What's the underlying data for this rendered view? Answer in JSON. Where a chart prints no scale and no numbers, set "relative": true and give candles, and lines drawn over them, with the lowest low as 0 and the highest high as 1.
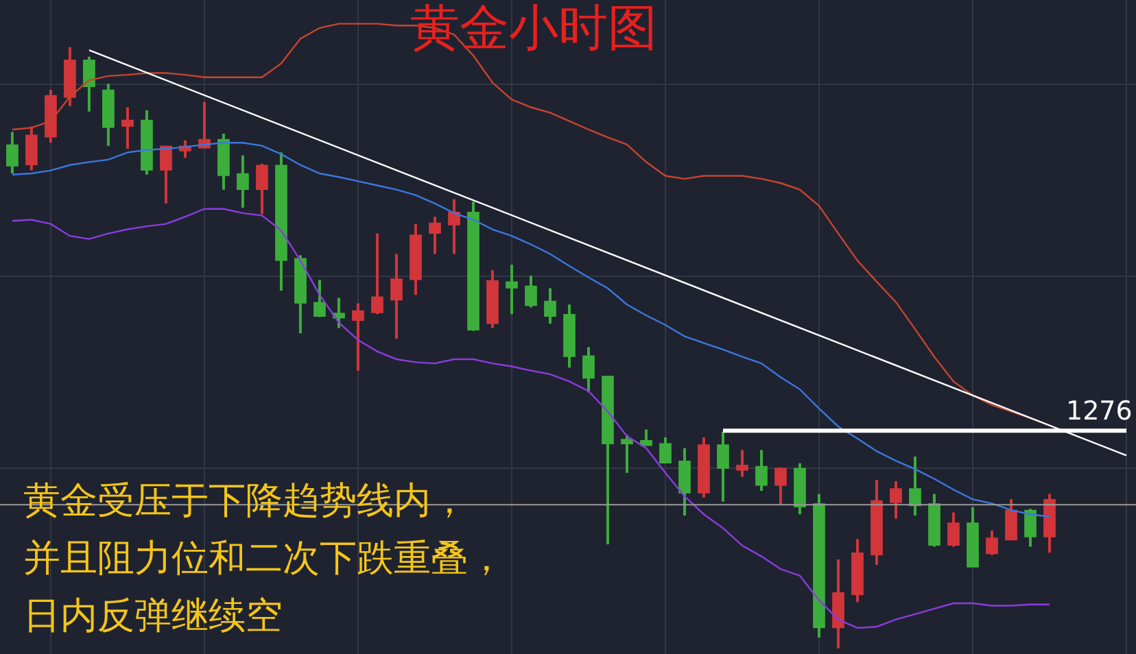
{
  "chart_data": {
    "type": "candlestick",
    "title": "黄金小时图",
    "relative": true,
    "legend": false,
    "grid": true,
    "marker": "none",
    "line_style": "solid",
    "annotations": [
      "黄金受压于下降趋势线内，",
      "并且阻力位和二次下跌重叠，",
      "日内反弹继续空"
    ],
    "categories": [
      null,
      null,
      null,
      null,
      null,
      null,
      null,
      null,
      null,
      null,
      null,
      null,
      null,
      null,
      null,
      null,
      null,
      null,
      null,
      null,
      null,
      null,
      null,
      null,
      null,
      null,
      null,
      null,
      null,
      null,
      null,
      null,
      null,
      null,
      null,
      null,
      null,
      null,
      null,
      null,
      null,
      null,
      null,
      null,
      null,
      null,
      null,
      null,
      null,
      null,
      null,
      null,
      null,
      null,
      null,
      null,
      null,
      null,
      null
    ],
    "ohlc": [
      [
        0.836,
        0.859,
        0.79,
        0.804
      ],
      [
        0.806,
        0.868,
        0.795,
        0.852
      ],
      [
        0.852,
        0.929,
        0.841,
        0.918
      ],
      [
        0.918,
        1.0,
        0.902,
        0.977
      ],
      [
        0.977,
        0.984,
        0.893,
        0.936
      ],
      [
        0.927,
        0.939,
        0.836,
        0.868
      ],
      [
        0.87,
        0.9,
        0.831,
        0.877
      ],
      [
        0.877,
        0.895,
        0.788,
        0.797
      ],
      [
        0.797,
        0.836,
        0.74,
        0.834
      ],
      [
        0.829,
        0.845,
        0.816,
        0.834
      ],
      [
        0.834,
        0.909,
        0.834,
        0.845
      ],
      [
        0.845,
        0.856,
        0.763,
        0.788
      ],
      [
        0.788,
        0.82,
        0.733,
        0.765
      ],
      [
        0.765,
        0.806,
        0.722,
        0.802
      ],
      [
        0.802,
        0.825,
        0.595,
        0.647
      ],
      [
        0.647,
        0.654,
        0.524,
        0.576
      ],
      [
        0.574,
        0.613,
        0.551,
        0.554
      ],
      [
        0.556,
        0.583,
        0.533,
        0.551
      ],
      [
        0.547,
        0.574,
        0.462,
        0.56
      ],
      [
        0.56,
        0.69,
        0.556,
        0.583
      ],
      [
        0.581,
        0.656,
        0.515,
        0.613
      ],
      [
        0.615,
        0.706,
        0.588,
        0.686
      ],
      [
        0.692,
        0.718,
        0.656,
        0.706
      ],
      [
        0.706,
        0.747,
        0.656,
        0.724
      ],
      [
        0.724,
        0.743,
        0.528,
        0.531
      ],
      [
        0.542,
        0.629,
        0.533,
        0.61
      ],
      [
        0.608,
        0.638,
        0.556,
        0.601
      ],
      [
        0.601,
        0.62,
        0.567,
        0.572
      ],
      [
        0.576,
        0.599,
        0.54,
        0.554
      ],
      [
        0.554,
        0.572,
        0.467,
        0.487
      ],
      [
        0.485,
        0.501,
        0.426,
        0.451
      ],
      [
        0.451,
        0.453,
        0.173,
        0.342
      ],
      [
        0.346,
        0.355,
        0.292,
        0.342
      ],
      [
        0.344,
        0.364,
        0.337,
        0.339
      ],
      [
        0.339,
        0.351,
        0.31,
        0.31
      ],
      [
        0.31,
        0.333,
        0.221,
        0.26
      ],
      [
        0.26,
        0.351,
        0.251,
        0.337
      ],
      [
        0.337,
        0.36,
        0.244,
        0.301
      ],
      [
        0.298,
        0.33,
        0.285,
        0.303
      ],
      [
        0.301,
        0.33,
        0.262,
        0.273
      ],
      [
        0.273,
        0.301,
        0.239,
        0.298
      ],
      [
        0.298,
        0.308,
        0.223,
        0.237
      ],
      [
        0.239,
        0.257,
        0.018,
        0.036
      ],
      [
        0.036,
        0.148,
        0.0,
        0.091
      ],
      [
        0.091,
        0.182,
        0.077,
        0.157
      ],
      [
        0.157,
        0.28,
        0.139,
        0.244
      ],
      [
        0.244,
        0.278,
        0.216,
        0.264
      ],
      [
        0.264,
        0.319,
        0.221,
        0.239
      ],
      [
        0.239,
        0.257,
        0.169,
        0.173
      ],
      [
        0.173,
        0.226,
        0.169,
        0.207
      ],
      [
        0.207,
        0.235,
        0.137,
        0.137
      ],
      [
        0.159,
        0.196,
        0.155,
        0.182
      ],
      [
        0.182,
        0.248,
        0.182,
        0.228
      ],
      [
        0.228,
        0.232,
        0.169,
        0.187
      ],
      [
        0.187,
        0.257,
        0.159,
        0.246
      ],
      null,
      null,
      null,
      null
    ],
    "colors": [
      "#3cae3c",
      "#d2363a",
      "#d2363a",
      "#d2363a",
      "#3cae3c",
      "#3cae3c",
      "#d2363a",
      "#3cae3c",
      "#d2363a",
      "#d2363a",
      "#d2363a",
      "#3cae3c",
      "#3cae3c",
      "#d2363a",
      "#3cae3c",
      "#3cae3c",
      "#3cae3c",
      "#3cae3c",
      "#d2363a",
      "#d2363a",
      "#d2363a",
      "#d2363a",
      "#d2363a",
      "#d2363a",
      "#3cae3c",
      "#d2363a",
      "#3cae3c",
      "#3cae3c",
      "#3cae3c",
      "#3cae3c",
      "#3cae3c",
      "#3cae3c",
      "#3cae3c",
      "#3cae3c",
      "#3cae3c",
      "#3cae3c",
      "#d2363a",
      "#3cae3c",
      "#d2363a",
      "#3cae3c",
      "#d2363a",
      "#3cae3c",
      "#3cae3c",
      "#d2363a",
      "#d2363a",
      "#d2363a",
      "#d2363a",
      "#3cae3c",
      "#3cae3c",
      "#d2363a",
      "#3cae3c",
      "#d2363a",
      "#d2363a",
      "#3cae3c",
      "#d2363a",
      null,
      null,
      null,
      null
    ],
    "series": [
      {
        "type": "line",
        "color": "#c8442f",
        "values": [
          0.863,
          0.866,
          0.877,
          0.918,
          0.945,
          0.952,
          0.954,
          0.957,
          0.957,
          0.954,
          0.95,
          0.95,
          0.95,
          0.95,
          0.973,
          1.014,
          1.032,
          1.039,
          1.039,
          1.039,
          1.036,
          1.036,
          1.032,
          1.021,
          0.986,
          0.941,
          0.913,
          0.9,
          0.891,
          0.877,
          0.863,
          0.85,
          0.838,
          0.809,
          0.786,
          0.781,
          0.786,
          0.786,
          0.786,
          0.781,
          0.774,
          0.763,
          0.736,
          0.69,
          0.645,
          0.61,
          0.576,
          0.531,
          0.485,
          0.444,
          0.421,
          0.405,
          0.394,
          0.383,
          0.371,
          null,
          null,
          null,
          null
        ]
      },
      {
        "type": "line",
        "color": "#3a78e0",
        "values": [
          0.788,
          0.79,
          0.795,
          0.804,
          0.809,
          0.813,
          0.825,
          0.829,
          0.831,
          0.834,
          0.838,
          0.841,
          0.841,
          0.836,
          0.822,
          0.804,
          0.79,
          0.784,
          0.777,
          0.77,
          0.763,
          0.754,
          0.74,
          0.724,
          0.713,
          0.697,
          0.686,
          0.672,
          0.656,
          0.636,
          0.617,
          0.599,
          0.572,
          0.554,
          0.538,
          0.519,
          0.508,
          0.497,
          0.485,
          0.474,
          0.451,
          0.431,
          0.399,
          0.369,
          0.349,
          0.328,
          0.312,
          0.298,
          0.282,
          0.264,
          0.248,
          0.241,
          0.23,
          0.223,
          0.219,
          null,
          null,
          null,
          null
        ]
      },
      {
        "type": "line",
        "color": "#8a3ce0",
        "values": [
          0.711,
          0.713,
          0.706,
          0.686,
          0.681,
          0.69,
          0.697,
          0.702,
          0.706,
          0.718,
          0.731,
          0.731,
          0.724,
          0.72,
          0.695,
          0.645,
          0.588,
          0.542,
          0.513,
          0.494,
          0.481,
          0.476,
          0.474,
          0.481,
          0.481,
          0.474,
          0.469,
          0.462,
          0.456,
          0.444,
          0.428,
          0.394,
          0.353,
          0.333,
          0.292,
          0.253,
          0.223,
          0.2,
          0.171,
          0.153,
          0.132,
          0.121,
          0.08,
          0.048,
          0.034,
          0.036,
          0.048,
          0.057,
          0.066,
          0.075,
          0.075,
          0.071,
          0.071,
          0.073,
          0.073,
          null,
          null,
          null,
          null
        ]
      },
      {
        "type": "line",
        "color": "#ffffff",
        "values": [
          null,
          null,
          null,
          null,
          0.995,
          null,
          null,
          null,
          null,
          null,
          null,
          null,
          null,
          null,
          null,
          null,
          null,
          null,
          null,
          null,
          null,
          null,
          null,
          null,
          null,
          null,
          null,
          null,
          null,
          null,
          null,
          null,
          null,
          null,
          null,
          null,
          null,
          null,
          null,
          null,
          null,
          null,
          null,
          null,
          null,
          null,
          null,
          null,
          null,
          null,
          null,
          null,
          null,
          null,
          null,
          null,
          null,
          null,
          0.321
        ]
      },
      {
        "type": "line",
        "color": "#ffffff",
        "name": "1276",
        "values": [
          null,
          null,
          null,
          null,
          null,
          null,
          null,
          null,
          null,
          null,
          null,
          null,
          null,
          null,
          null,
          null,
          null,
          null,
          null,
          null,
          null,
          null,
          null,
          null,
          null,
          null,
          null,
          null,
          null,
          null,
          null,
          null,
          null,
          null,
          null,
          null,
          null,
          0.362,
          0.362,
          0.362,
          0.362,
          0.362,
          0.362,
          0.362,
          0.362,
          0.362,
          0.362,
          0.362,
          0.362,
          0.362,
          0.362,
          0.362,
          0.362,
          0.362,
          0.362,
          0.362,
          0.362,
          0.362,
          0.362
        ]
      }
    ],
    "ref_lines": [
      {
        "axis": "y",
        "value": 0.239,
        "color": "#9a9a9a"
      }
    ]
  }
}
